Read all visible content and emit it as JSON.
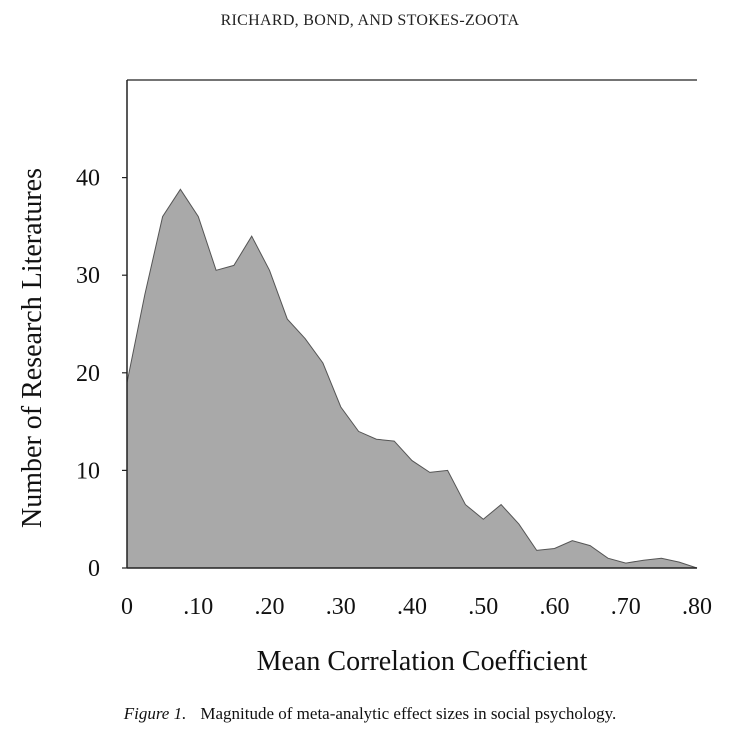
{
  "running_head": "RICHARD, BOND, AND STOKES-ZOOTA",
  "caption": {
    "figure_label": "Figure 1.",
    "text": "Magnitude of meta-analytic effect sizes in social psychology."
  },
  "colors": {
    "area_fill": "#a9a9a9",
    "area_stroke": "#555555",
    "axis": "#222222"
  },
  "chart_data": {
    "type": "area",
    "xlabel": "Mean Correlation Coefficient",
    "ylabel": "Number of Research Literatures",
    "x_ticks": [
      "0",
      ".10",
      ".20",
      ".30",
      ".40",
      ".50",
      ".60",
      ".70",
      ".80"
    ],
    "x_tick_values": [
      0,
      0.1,
      0.2,
      0.3,
      0.4,
      0.5,
      0.6,
      0.7,
      0.8
    ],
    "y_ticks": [
      "0",
      "10",
      "20",
      "30",
      "40"
    ],
    "y_tick_values": [
      0,
      10,
      20,
      30,
      40
    ],
    "xlim": [
      0,
      0.8
    ],
    "ylim": [
      0,
      50
    ],
    "grid": false,
    "x": [
      0,
      0.025,
      0.05,
      0.075,
      0.1,
      0.125,
      0.15,
      0.175,
      0.2,
      0.225,
      0.25,
      0.275,
      0.3,
      0.325,
      0.35,
      0.375,
      0.4,
      0.425,
      0.45,
      0.475,
      0.5,
      0.525,
      0.55,
      0.575,
      0.6,
      0.625,
      0.65,
      0.675,
      0.7,
      0.725,
      0.75,
      0.775,
      0.8
    ],
    "values": [
      19,
      28,
      36,
      38.8,
      36,
      30.5,
      31,
      34,
      30.5,
      25.5,
      23.5,
      21,
      16.5,
      14,
      13.2,
      13,
      11,
      9.8,
      10,
      6.5,
      5,
      6.5,
      4.5,
      1.8,
      2,
      2.8,
      2.3,
      1,
      0.5,
      0.8,
      1,
      0.6,
      0
    ]
  }
}
